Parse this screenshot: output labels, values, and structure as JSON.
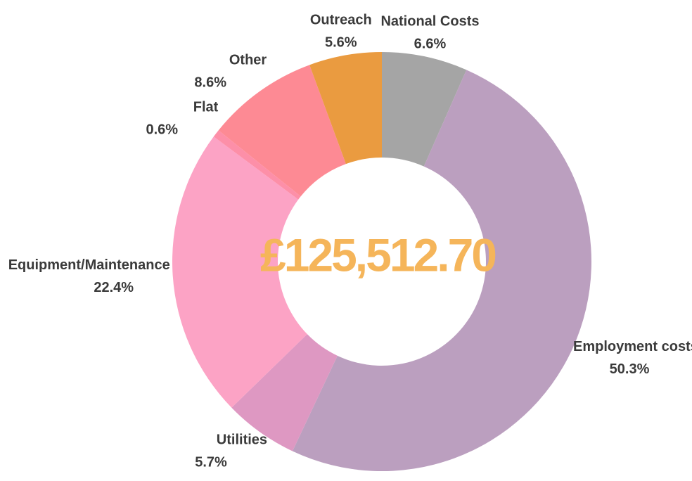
{
  "chart_data": {
    "type": "donut",
    "center_label": "£125,512.70",
    "categories": [
      "National Costs",
      "Employment costs",
      "Utilities",
      "Equipment/Maintenance",
      "Flat",
      "Other",
      "Outreach"
    ],
    "values": [
      6.6,
      50.3,
      5.7,
      22.4,
      0.6,
      8.6,
      5.6
    ],
    "value_labels": [
      "6.6%",
      "50.3%",
      "5.7%",
      "22.4%",
      "0.6%",
      "8.6%",
      "5.6%"
    ],
    "colors": [
      "#a5a5a5",
      "#bb9fbf",
      "#de98c2",
      "#fca3c5",
      "#fd8fa8",
      "#fd8a94",
      "#ea9b40"
    ]
  }
}
